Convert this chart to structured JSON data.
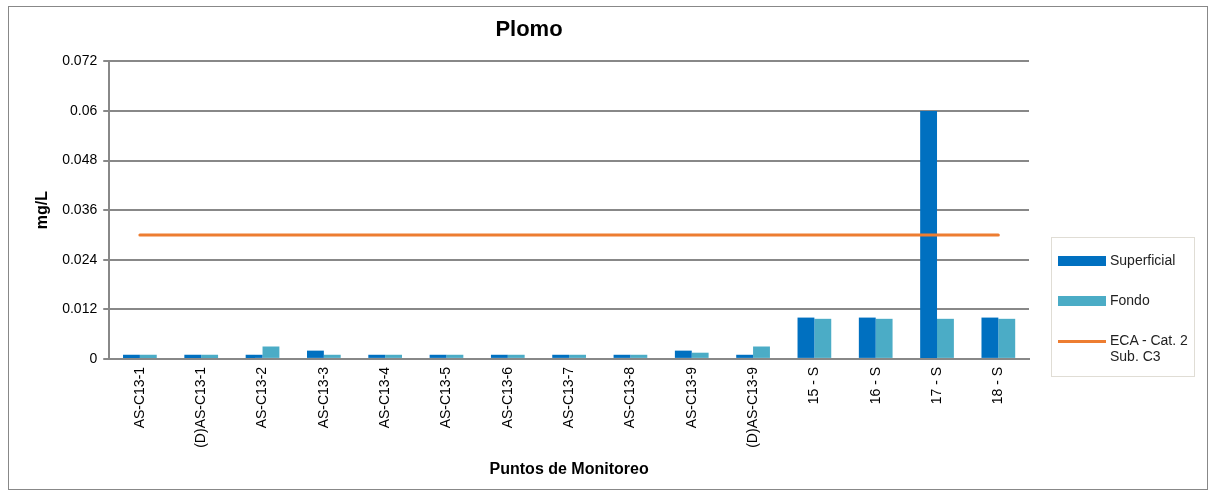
{
  "chart_data": {
    "type": "bar",
    "title": "Plomo",
    "xlabel": "Puntos de Monitoreo",
    "ylabel": "mg/L",
    "categories": [
      "AS-C13-1",
      "(D)AS-C13-1",
      "AS-C13-2",
      "AS-C13-3",
      "AS-C13-4",
      "AS-C13-5",
      "AS-C13-6",
      "AS-C13-7",
      "AS-C13-8",
      "AS-C13-9",
      "(D)AS-C13-9",
      "15 - S",
      "16 - S",
      "17 - S",
      "18 - S"
    ],
    "series": [
      {
        "name": "Superficial",
        "color": "#0070c0",
        "values": [
          0.001,
          0.001,
          0.001,
          0.002,
          0.001,
          0.001,
          0.001,
          0.001,
          0.001,
          0.002,
          0.001,
          0.01,
          0.01,
          0.06,
          0.01
        ]
      },
      {
        "name": "Fondo",
        "color": "#4bacc6",
        "values": [
          0.001,
          0.001,
          0.003,
          0.001,
          0.001,
          0.001,
          0.001,
          0.001,
          0.001,
          0.0015,
          0.003,
          0.0097,
          0.0097,
          0.0097,
          0.0097
        ]
      },
      {
        "name": "ECA - Cat. 2 Sub. C3",
        "type": "line",
        "color": "#ed7d31",
        "values": [
          0.03,
          0.03,
          0.03,
          0.03,
          0.03,
          0.03,
          0.03,
          0.03,
          0.03,
          0.03,
          0.03,
          0.03,
          0.03,
          0.03,
          0.03
        ]
      }
    ],
    "ylim": [
      0,
      0.072
    ],
    "yticks": [
      0,
      0.012,
      0.024,
      0.036,
      0.048,
      0.06,
      0.072
    ],
    "grid": "y",
    "legend": "right"
  }
}
